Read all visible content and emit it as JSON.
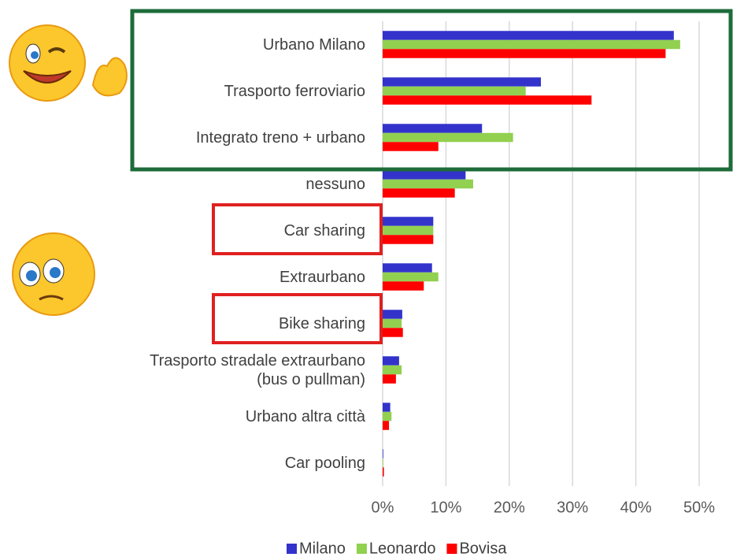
{
  "chart_data": {
    "type": "bar",
    "orientation": "horizontal",
    "categories": [
      "Urbano Milano",
      "Trasporto ferroviario",
      "Integrato treno + urbano",
      "nessuno",
      "Car sharing",
      "Extraurbano",
      "Bike sharing",
      "Trasporto stradale extraurbano\n(bus o pullman)",
      "Urbano altra città",
      "Car pooling"
    ],
    "series": [
      {
        "name": "Milano",
        "color": "#3333cc",
        "values": [
          46.0,
          25.0,
          15.7,
          13.1,
          8.0,
          7.8,
          3.1,
          2.6,
          1.2,
          0.1
        ]
      },
      {
        "name": "Leonardo",
        "color": "#92d050",
        "values": [
          47.0,
          22.6,
          20.6,
          14.3,
          8.0,
          8.8,
          3.0,
          3.0,
          1.4,
          0.1
        ]
      },
      {
        "name": "Bovisa",
        "color": "#ff0000",
        "values": [
          44.7,
          33.0,
          8.8,
          11.4,
          8.0,
          6.5,
          3.2,
          2.1,
          1.0,
          0.2
        ]
      }
    ],
    "xlim": [
      0,
      50
    ],
    "xticks": [
      {
        "value": 0,
        "label": "0%"
      },
      {
        "value": 10,
        "label": "10%"
      },
      {
        "value": 20,
        "label": "20%"
      },
      {
        "value": 30,
        "label": "30%"
      },
      {
        "value": 40,
        "label": "40%"
      },
      {
        "value": 50,
        "label": "50%"
      }
    ],
    "grid": true,
    "legend": "bottom"
  }
}
